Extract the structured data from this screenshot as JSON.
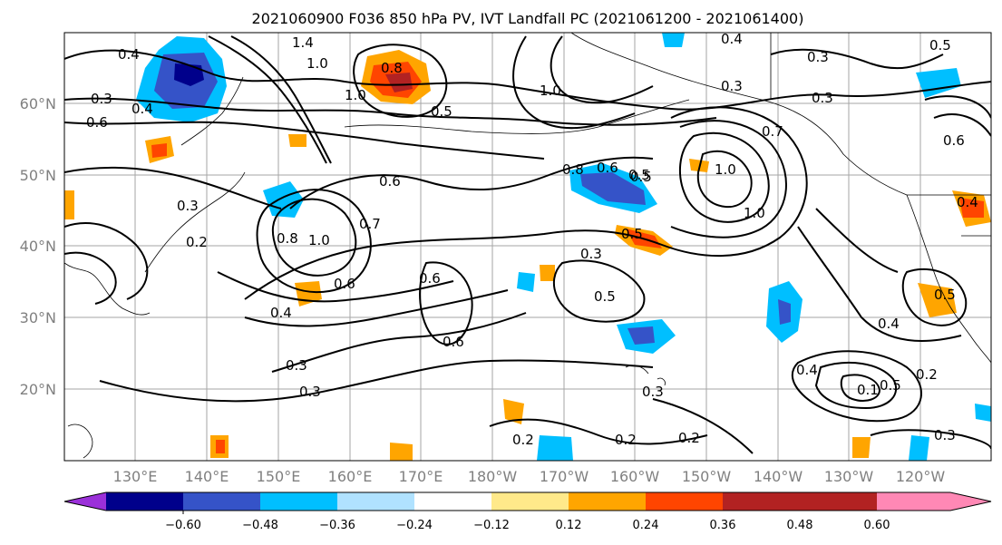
{
  "title": "2021060900 F036 850 hPa PV, IVT Landfall PC (2021061200 - 2021061400)",
  "map": {
    "lat_ticks": [
      "60°N",
      "50°N",
      "40°N",
      "30°N",
      "20°N"
    ],
    "lon_ticks": [
      "130°E",
      "140°E",
      "150°E",
      "160°E",
      "170°E",
      "180°W",
      "170°W",
      "160°W",
      "150°W",
      "140°W",
      "130°W",
      "120°W"
    ],
    "grid": true,
    "contour_color": "#000000"
  },
  "contour_labels": [
    "0.4",
    "0.3",
    "0.6",
    "1.4",
    "1.0",
    "0.8",
    "0.3",
    "0.5",
    "0.3",
    "0.4",
    "0.5",
    "1.0",
    "1.0",
    "0.6",
    "0.7",
    "0.3",
    "0.6",
    "0.5",
    "1.0",
    "1.0",
    "0.6",
    "0.4",
    "0.7",
    "0.8",
    "1.0",
    "0.5",
    "0.6",
    "0.5",
    "0.5",
    "0.3",
    "0.6",
    "0.5",
    "0.4",
    "0.6",
    "0.3",
    "0.3",
    "0.4",
    "0.2",
    "0.2",
    "0.3",
    "0.2",
    "0.3",
    "0.4",
    "0.5",
    "0.8",
    "0.4",
    "0.2",
    "0.3",
    "0.2",
    "0.1"
  ],
  "colorbar": {
    "ticks": [
      "−0.60",
      "−0.48",
      "−0.36",
      "−0.24",
      "−0.12",
      "0.12",
      "0.24",
      "0.36",
      "0.48",
      "0.60"
    ],
    "colors": [
      "#9b30d9",
      "#00008b",
      "#3553c8",
      "#00bfff",
      "#b0e2ff",
      "#ffffff",
      "#ffe98a",
      "#ffa500",
      "#ff4500",
      "#b22222",
      "#ff88b5"
    ]
  },
  "shading": [
    {
      "level": "blue",
      "color": "#00bfff"
    },
    {
      "level": "mid-blue",
      "color": "#3553c8"
    },
    {
      "level": "navy",
      "color": "#00008b"
    },
    {
      "level": "orange",
      "color": "#ffa500"
    },
    {
      "level": "red-orange",
      "color": "#ff4500"
    },
    {
      "level": "dark-red",
      "color": "#b22222"
    },
    {
      "level": "yellow",
      "color": "#ffe98a"
    }
  ]
}
